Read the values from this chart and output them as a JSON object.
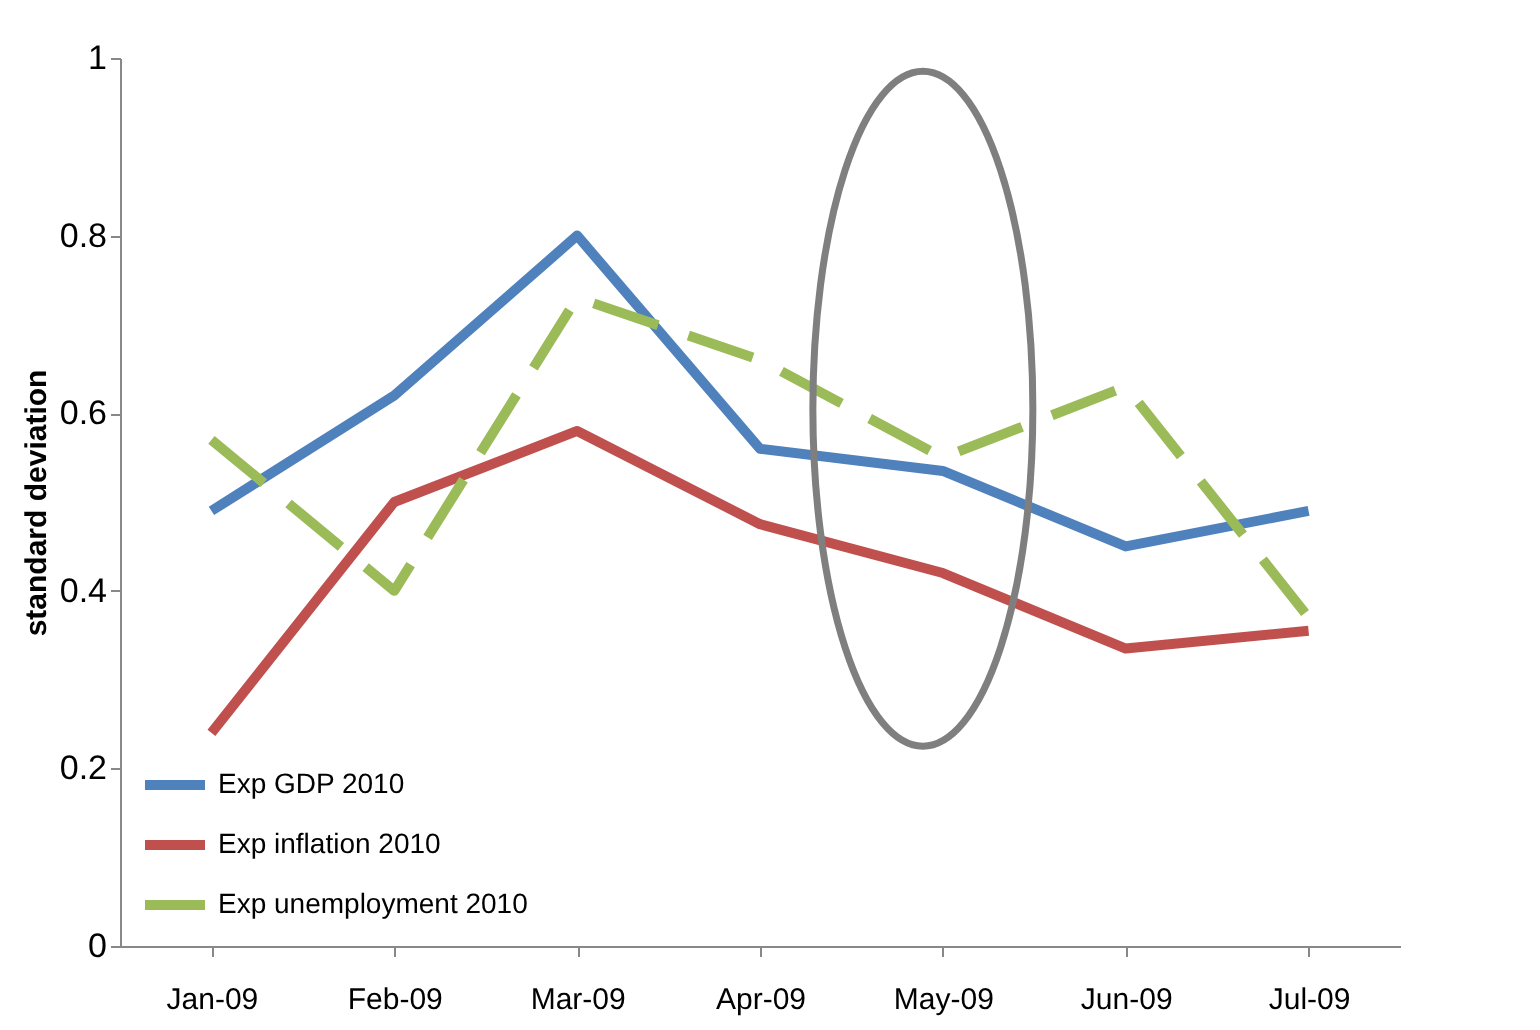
{
  "chart_data": {
    "type": "line",
    "ylabel": "standard deviation",
    "categories": [
      "Jan-09",
      "Feb-09",
      "Mar-09",
      "Apr-09",
      "May-09",
      "Jun-09",
      "Jul-09"
    ],
    "series": [
      {
        "name": "Exp GDP 2010",
        "color": "#4f81bd",
        "values": [
          0.49,
          0.62,
          0.8,
          0.56,
          0.535,
          0.45,
          0.49
        ]
      },
      {
        "name": "Exp inflation 2010",
        "color": "#c0504d",
        "values": [
          0.24,
          0.5,
          0.58,
          0.475,
          0.42,
          0.335,
          0.355
        ]
      },
      {
        "name": "Exp unemployment 2010",
        "color": "#9bbb59",
        "line_style": "dashed",
        "values": [
          0.57,
          0.4,
          0.73,
          0.66,
          0.55,
          0.63,
          0.37
        ]
      }
    ],
    "ylim": [
      0,
      1
    ],
    "yticks": [
      0,
      0.2,
      0.4,
      0.6,
      0.8,
      1
    ],
    "grid": false,
    "legend": "bottom left",
    "marker": "none"
  }
}
